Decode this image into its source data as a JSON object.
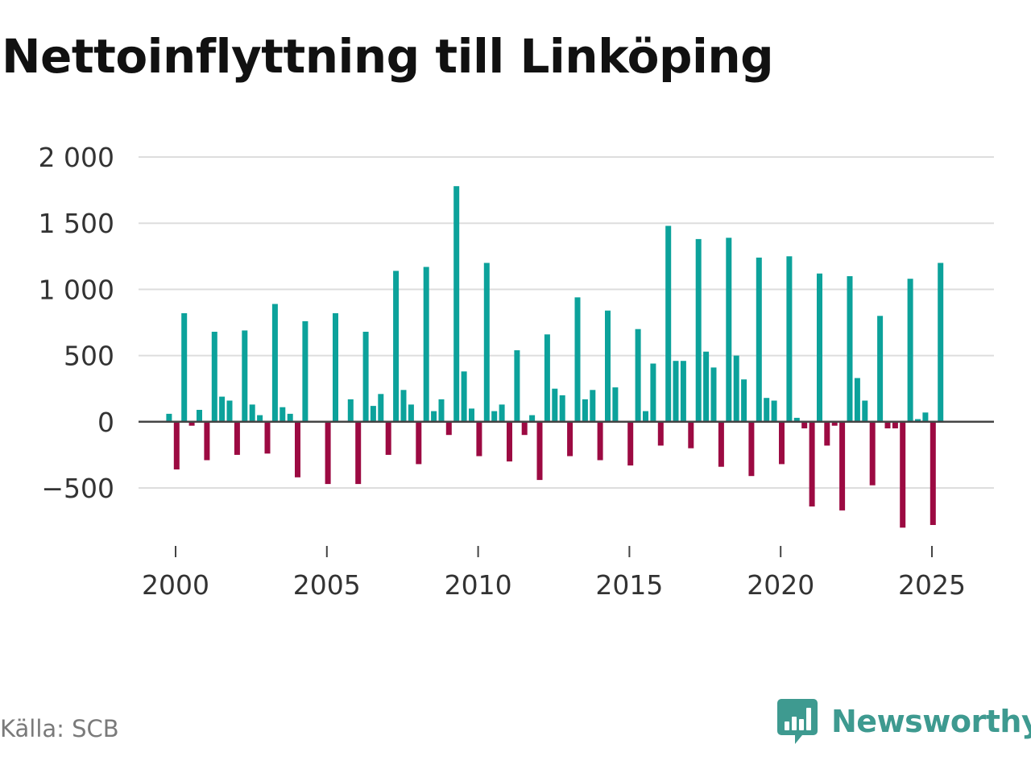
{
  "title": "Nettoinflyttning till Linköping",
  "source": "Källa: SCB",
  "brand": {
    "name": "Newsworthy",
    "logo_icon": "newsworthy-logo-icon"
  },
  "colors": {
    "positive": "#0ca29b",
    "negative": "#9c0a42",
    "grid": "#dddddd",
    "zero_line": "#444444",
    "brand": "#3e9a90"
  },
  "chart_data": {
    "type": "bar",
    "title": "Nettoinflyttning till Linköping",
    "xlabel": "",
    "ylabel": "",
    "x_range": [
      1999.5,
      2026.0
    ],
    "ylim": [
      -880,
      2050
    ],
    "y_ticks": [
      2000,
      1500,
      1000,
      500,
      0,
      -500
    ],
    "y_tick_labels": [
      "2 000",
      "1 500",
      "1 000",
      "500",
      "0",
      "−500"
    ],
    "x_ticks": [
      2000,
      2005,
      2010,
      2015,
      2020,
      2025
    ],
    "x_tick_labels": [
      "2000",
      "2005",
      "2010",
      "2015",
      "2020",
      "2025"
    ],
    "grid": true,
    "bars_per_year": 4,
    "values": [
      60,
      -360,
      820,
      -30,
      90,
      -290,
      680,
      190,
      160,
      -250,
      690,
      130,
      50,
      -240,
      890,
      110,
      60,
      -420,
      760,
      0,
      0,
      -470,
      820,
      0,
      170,
      -470,
      680,
      120,
      210,
      -250,
      1140,
      240,
      130,
      -320,
      1170,
      80,
      170,
      -100,
      1780,
      380,
      100,
      -260,
      1200,
      80,
      130,
      -300,
      540,
      -100,
      50,
      -440,
      660,
      250,
      200,
      -260,
      940,
      170,
      240,
      -290,
      840,
      260,
      0,
      -330,
      700,
      80,
      440,
      -180,
      1480,
      460,
      460,
      -200,
      1380,
      530,
      410,
      -340,
      1390,
      500,
      320,
      -410,
      1240,
      180,
      160,
      -320,
      1250,
      30,
      -50,
      -640,
      1120,
      -180,
      -30,
      -670,
      1100,
      330,
      160,
      -480,
      800,
      -50,
      -50,
      -800,
      1080,
      20,
      70,
      -780,
      1200
    ]
  }
}
